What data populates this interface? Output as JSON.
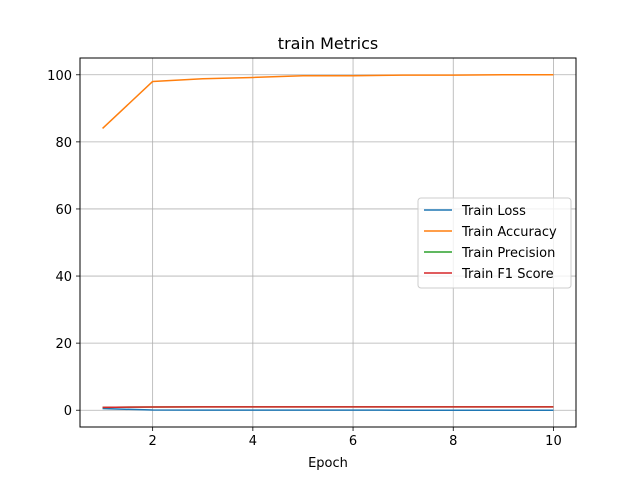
{
  "chart_data": {
    "type": "line",
    "title": "train Metrics",
    "xlabel": "Epoch",
    "ylabel": "",
    "x": [
      1,
      2,
      3,
      4,
      5,
      6,
      7,
      8,
      9,
      10
    ],
    "xlim": [
      0.55,
      10.45
    ],
    "ylim": [
      -5,
      105
    ],
    "xticks": [
      2,
      4,
      6,
      8,
      10
    ],
    "yticks": [
      0,
      20,
      40,
      60,
      80,
      100
    ],
    "grid": true,
    "legend_position": "center-right",
    "series": [
      {
        "name": "Train Loss",
        "color": "#1f77b4",
        "values": [
          0.5,
          0.05,
          0.04,
          0.03,
          0.02,
          0.02,
          0.01,
          0.01,
          0.01,
          0.01
        ]
      },
      {
        "name": "Train Accuracy",
        "color": "#ff7f0e",
        "values": [
          84,
          98,
          98.8,
          99.2,
          99.7,
          99.7,
          99.9,
          99.9,
          100,
          100
        ]
      },
      {
        "name": "Train Precision",
        "color": "#2ca02c",
        "values": [
          0.85,
          0.98,
          0.99,
          0.99,
          1.0,
          1.0,
          1.0,
          1.0,
          1.0,
          1.0
        ]
      },
      {
        "name": "Train F1 Score",
        "color": "#d62728",
        "values": [
          0.84,
          0.98,
          0.99,
          0.99,
          1.0,
          1.0,
          1.0,
          1.0,
          1.0,
          1.0
        ]
      }
    ]
  }
}
